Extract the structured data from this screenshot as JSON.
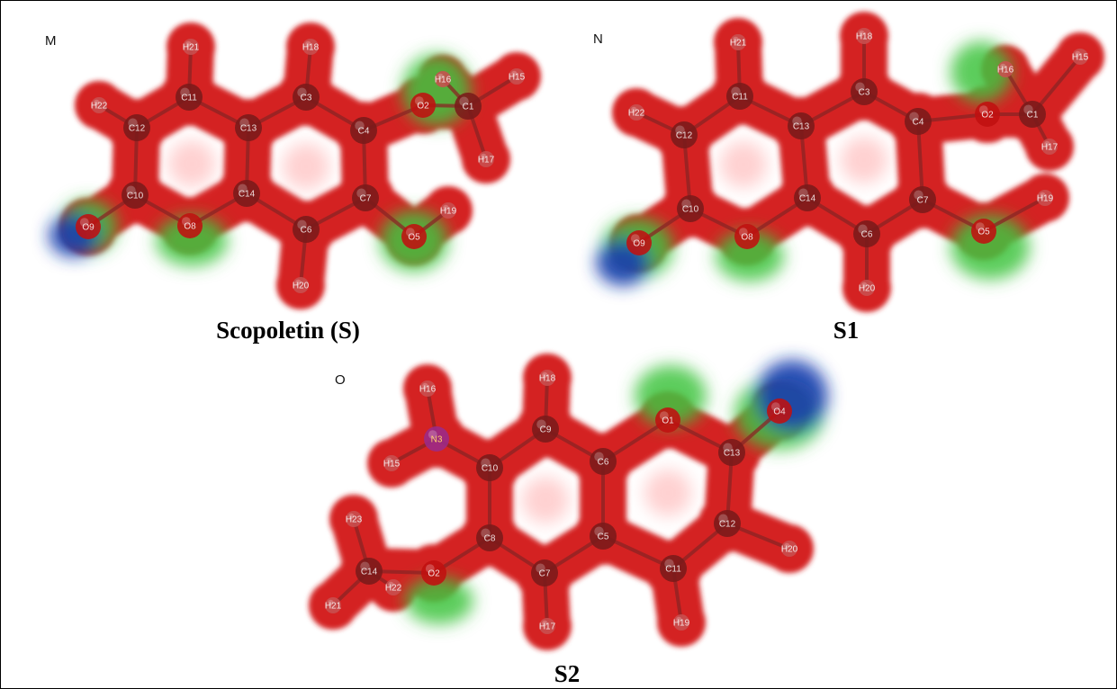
{
  "panels": [
    {
      "letter": "M",
      "caption": "Scopoletin (S)",
      "atoms": [
        {
          "id": "H21",
          "el": "H"
        },
        {
          "id": "H18",
          "el": "H"
        },
        {
          "id": "H16",
          "el": "H"
        },
        {
          "id": "H15",
          "el": "H"
        },
        {
          "id": "H22",
          "el": "H"
        },
        {
          "id": "C11",
          "el": "C"
        },
        {
          "id": "C3",
          "el": "C"
        },
        {
          "id": "O2",
          "el": "O"
        },
        {
          "id": "C1",
          "el": "C"
        },
        {
          "id": "C12",
          "el": "C"
        },
        {
          "id": "C13",
          "el": "C"
        },
        {
          "id": "C4",
          "el": "C"
        },
        {
          "id": "H17",
          "el": "H"
        },
        {
          "id": "C10",
          "el": "C"
        },
        {
          "id": "C14",
          "el": "C"
        },
        {
          "id": "C7",
          "el": "C"
        },
        {
          "id": "H19",
          "el": "H"
        },
        {
          "id": "O9",
          "el": "O"
        },
        {
          "id": "O8",
          "el": "O"
        },
        {
          "id": "C6",
          "el": "C"
        },
        {
          "id": "O5",
          "el": "O"
        },
        {
          "id": "H20",
          "el": "H"
        }
      ]
    },
    {
      "letter": "N",
      "caption": "S1",
      "atoms": [
        {
          "id": "H21",
          "el": "H"
        },
        {
          "id": "H18",
          "el": "H"
        },
        {
          "id": "H16",
          "el": "H"
        },
        {
          "id": "H15",
          "el": "H"
        },
        {
          "id": "H22",
          "el": "H"
        },
        {
          "id": "C11",
          "el": "C"
        },
        {
          "id": "C3",
          "el": "C"
        },
        {
          "id": "O2",
          "el": "O"
        },
        {
          "id": "C1",
          "el": "C"
        },
        {
          "id": "C12",
          "el": "C"
        },
        {
          "id": "C13",
          "el": "C"
        },
        {
          "id": "C4",
          "el": "C"
        },
        {
          "id": "H17",
          "el": "H"
        },
        {
          "id": "C10",
          "el": "C"
        },
        {
          "id": "C14",
          "el": "C"
        },
        {
          "id": "C7",
          "el": "C"
        },
        {
          "id": "H19",
          "el": "H"
        },
        {
          "id": "O9",
          "el": "O"
        },
        {
          "id": "O8",
          "el": "O"
        },
        {
          "id": "C6",
          "el": "C"
        },
        {
          "id": "O5",
          "el": "O"
        },
        {
          "id": "H20",
          "el": "H"
        }
      ]
    },
    {
      "letter": "O",
      "caption": "S2",
      "atoms": [
        {
          "id": "H16",
          "el": "H"
        },
        {
          "id": "H18",
          "el": "H"
        },
        {
          "id": "N3",
          "el": "N"
        },
        {
          "id": "C9",
          "el": "C"
        },
        {
          "id": "O1",
          "el": "O"
        },
        {
          "id": "O4",
          "el": "O"
        },
        {
          "id": "H15",
          "el": "H"
        },
        {
          "id": "C10",
          "el": "C"
        },
        {
          "id": "C6",
          "el": "C"
        },
        {
          "id": "C13",
          "el": "C"
        },
        {
          "id": "H23",
          "el": "H"
        },
        {
          "id": "C8",
          "el": "C"
        },
        {
          "id": "C5",
          "el": "C"
        },
        {
          "id": "C12",
          "el": "C"
        },
        {
          "id": "H20",
          "el": "H"
        },
        {
          "id": "C14",
          "el": "C"
        },
        {
          "id": "O2",
          "el": "O"
        },
        {
          "id": "H22",
          "el": "H"
        },
        {
          "id": "C7",
          "el": "C"
        },
        {
          "id": "C11",
          "el": "C"
        },
        {
          "id": "H21",
          "el": "H"
        },
        {
          "id": "H17",
          "el": "H"
        },
        {
          "id": "H19",
          "el": "H"
        }
      ]
    }
  ],
  "colors": {
    "surface_red": "#d42020",
    "surface_green": "#3ec43e",
    "surface_blue": "#1a3fb0",
    "atom_carbon": "#7a1a1a",
    "atom_oxygen": "#c01010",
    "atom_nitrogen": "#9b2a8a",
    "atom_hydrogen": "#c85050"
  }
}
